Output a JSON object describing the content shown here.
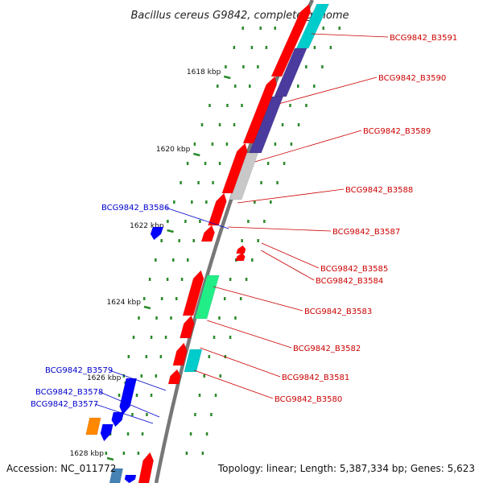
{
  "title": "Bacillus cereus G9842, complete genome",
  "footer": {
    "accession": "Accession: NC_011772",
    "info": "Topology: linear; Length: 5,387,334 bp; Genes: 5,623"
  },
  "colors": {
    "forward_gene": "#ff0000",
    "reverse_gene": "#0000ff",
    "forward_label": "#cc0000",
    "reverse_label": "#0000cc",
    "cog_teal": "#00cccc",
    "cog_purple": "#4b3b9e",
    "cog_gray": "#c8c8c8",
    "cog_green": "#22ee88",
    "cog_orange": "#ff8800",
    "cog_steel": "#4682b4",
    "dots": "#2a8a2a"
  },
  "scale_ticks": [
    "1618 kbp",
    "1620 kbp",
    "1622 kbp",
    "1624 kbp",
    "1626 kbp",
    "1628 kbp"
  ],
  "genes_forward": [
    {
      "id": "BCG9842_B3591",
      "cog": "cog_teal"
    },
    {
      "id": "BCG9842_B3590",
      "cog": "cog_purple"
    },
    {
      "id": "BCG9842_B3589",
      "cog": "cog_purple"
    },
    {
      "id": "BCG9842_B3588",
      "cog": "cog_gray"
    },
    {
      "id": "BCG9842_B3587",
      "cog": ""
    },
    {
      "id": "BCG9842_B3585",
      "cog": ""
    },
    {
      "id": "BCG9842_B3584",
      "cog": ""
    },
    {
      "id": "BCG9842_B3583",
      "cog": "cog_green"
    },
    {
      "id": "BCG9842_B3582",
      "cog": ""
    },
    {
      "id": "BCG9842_B3581",
      "cog": "cog_teal"
    },
    {
      "id": "BCG9842_B3580",
      "cog": ""
    }
  ],
  "genes_reverse": [
    {
      "id": "BCG9842_B3586",
      "cog": ""
    },
    {
      "id": "BCG9842_B3579",
      "cog": ""
    },
    {
      "id": "BCG9842_B3578",
      "cog": ""
    },
    {
      "id": "BCG9842_B3577",
      "cog": "cog_orange"
    }
  ]
}
